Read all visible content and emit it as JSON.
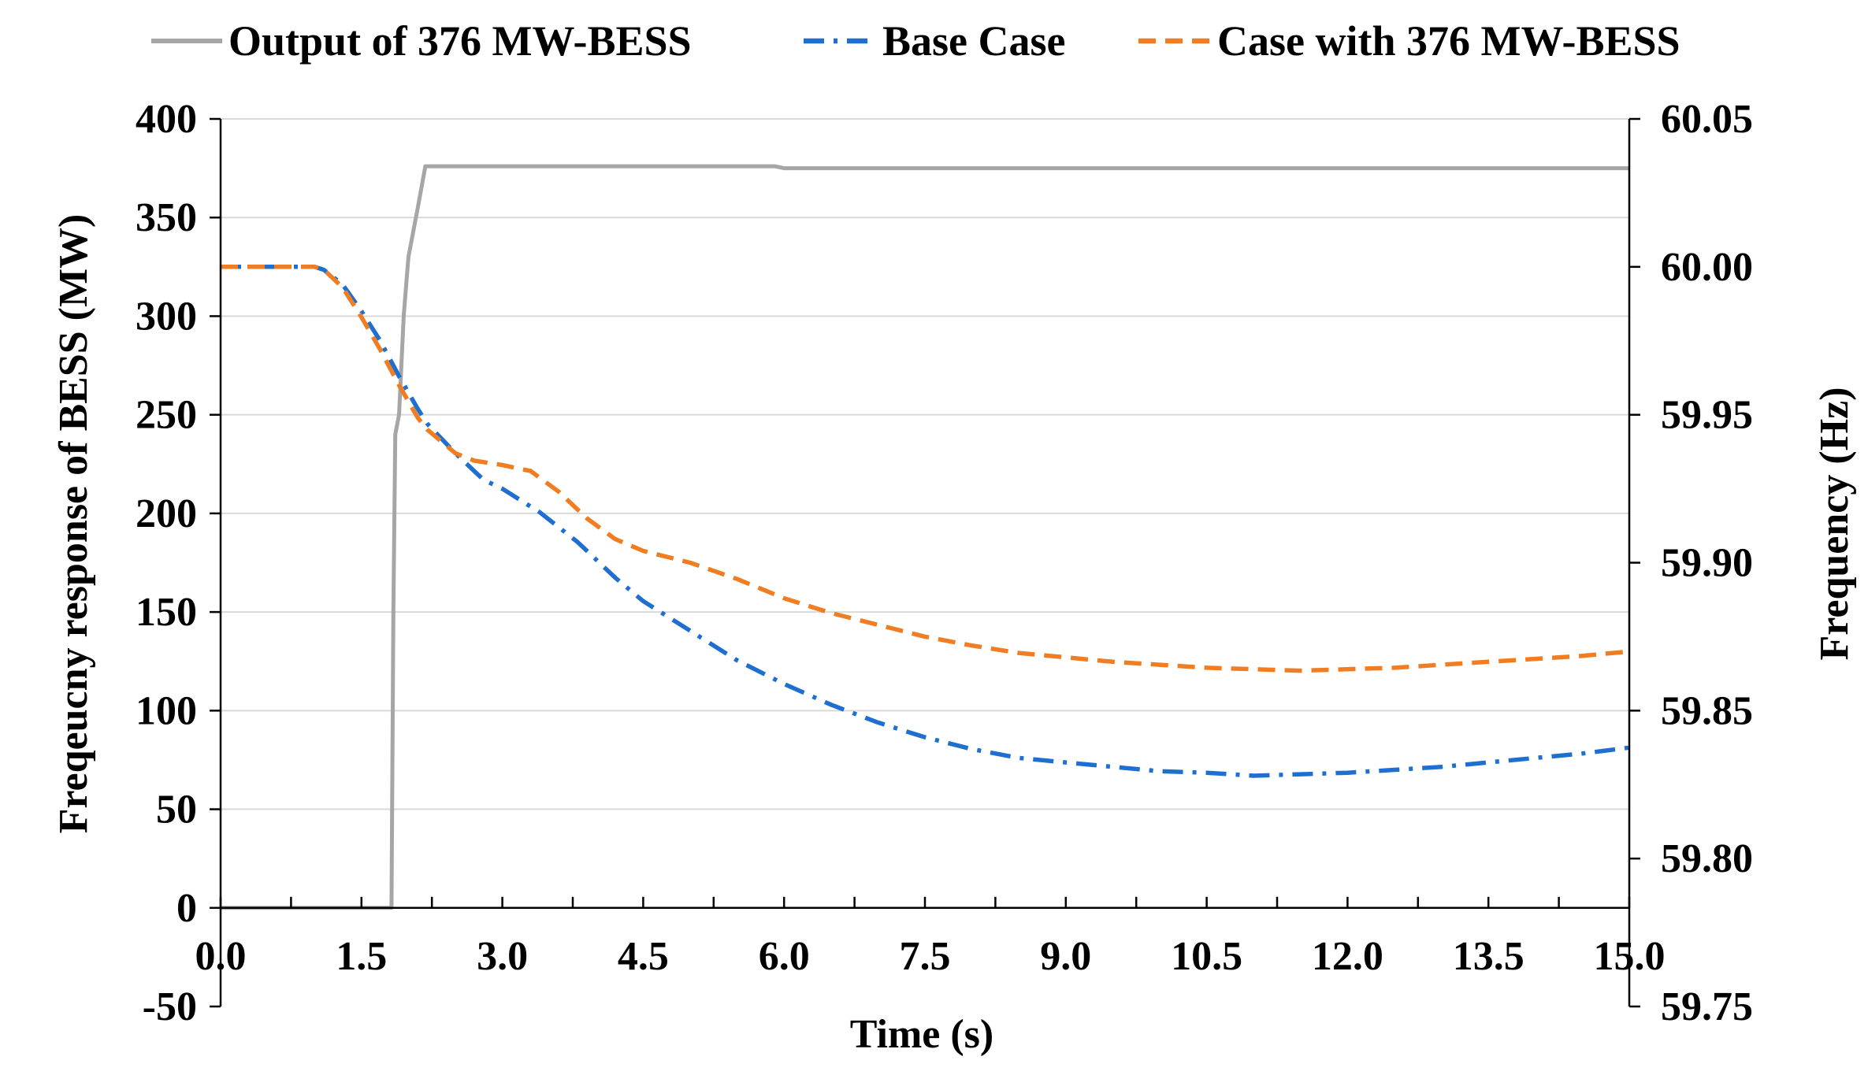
{
  "chart_data": {
    "type": "line",
    "xlabel": "Time (s)",
    "ylabel_left": "Freqeucny response of BESS (MW)",
    "ylabel_right": "Frequency (Hz)",
    "xlim": [
      0,
      15
    ],
    "ylim_left": [
      -50,
      400
    ],
    "ylim_right": [
      59.75,
      60.05
    ],
    "grid": true,
    "legend_position": "top",
    "x_ticks": [
      "0.0",
      "1.5",
      "3.0",
      "4.5",
      "6.0",
      "7.5",
      "9.0",
      "10.5",
      "12.0",
      "13.5",
      "15.0"
    ],
    "y_left_ticks": [
      "400",
      "350",
      "300",
      "250",
      "200",
      "150",
      "100",
      "50",
      "0",
      "-50"
    ],
    "y_right_ticks": [
      "60.05",
      "60.00",
      "59.95",
      "59.90",
      "59.85",
      "59.80",
      "59.75"
    ],
    "colors": {
      "bess": "#a6a6a6",
      "base": "#1f6fd1",
      "case": "#f07d22",
      "grid": "#d9d9d9"
    },
    "series": [
      {
        "name": "Output of 376 MW-BESS",
        "axis": "left",
        "style": "solid",
        "color_key": "bess",
        "points": [
          [
            0,
            0
          ],
          [
            1.75,
            0
          ],
          [
            1.82,
            0
          ],
          [
            1.84,
            150
          ],
          [
            1.86,
            240
          ],
          [
            1.9,
            250
          ],
          [
            1.95,
            300
          ],
          [
            2.0,
            330
          ],
          [
            2.1,
            355
          ],
          [
            2.18,
            376
          ],
          [
            4.0,
            376
          ],
          [
            5.9,
            376
          ],
          [
            6.0,
            375
          ],
          [
            15.0,
            375
          ]
        ]
      },
      {
        "name": "Base Case",
        "axis": "right",
        "style": "dashdot",
        "color_key": "base",
        "points": [
          [
            0,
            60.0
          ],
          [
            0.5,
            60.0
          ],
          [
            1.0,
            60.0
          ],
          [
            1.1,
            59.999
          ],
          [
            1.3,
            59.994
          ],
          [
            1.5,
            59.985
          ],
          [
            1.7,
            59.975
          ],
          [
            1.9,
            59.963
          ],
          [
            2.1,
            59.952
          ],
          [
            2.2,
            59.947
          ],
          [
            2.5,
            59.937
          ],
          [
            2.8,
            59.928
          ],
          [
            3.0,
            59.925
          ],
          [
            3.4,
            59.917
          ],
          [
            3.8,
            59.907
          ],
          [
            4.2,
            59.895
          ],
          [
            4.5,
            59.887
          ],
          [
            5.0,
            59.877
          ],
          [
            5.5,
            59.867
          ],
          [
            6.0,
            59.859
          ],
          [
            6.5,
            59.852
          ],
          [
            7.0,
            59.846
          ],
          [
            7.5,
            59.841
          ],
          [
            8.0,
            59.837
          ],
          [
            8.5,
            59.834
          ],
          [
            9.0,
            59.8325
          ],
          [
            9.5,
            59.831
          ],
          [
            10.0,
            59.8295
          ],
          [
            10.5,
            59.829
          ],
          [
            11.0,
            59.828
          ],
          [
            11.5,
            59.8285
          ],
          [
            12.0,
            59.829
          ],
          [
            12.5,
            59.83
          ],
          [
            13.0,
            59.831
          ],
          [
            13.5,
            59.8325
          ],
          [
            14.0,
            59.834
          ],
          [
            14.5,
            59.8355
          ],
          [
            15.0,
            59.8375
          ]
        ]
      },
      {
        "name": "Case with 376 MW-BESS",
        "axis": "right",
        "style": "dashed",
        "color_key": "case",
        "points": [
          [
            0,
            60.0
          ],
          [
            0.5,
            60.0
          ],
          [
            1.0,
            60.0
          ],
          [
            1.1,
            59.999
          ],
          [
            1.3,
            59.993
          ],
          [
            1.5,
            59.983
          ],
          [
            1.7,
            59.972
          ],
          [
            1.9,
            59.96
          ],
          [
            2.1,
            59.949
          ],
          [
            2.2,
            59.945
          ],
          [
            2.5,
            59.937
          ],
          [
            2.7,
            59.9345
          ],
          [
            3.0,
            59.933
          ],
          [
            3.3,
            59.931
          ],
          [
            3.6,
            59.924
          ],
          [
            3.9,
            59.915
          ],
          [
            4.2,
            59.908
          ],
          [
            4.5,
            59.904
          ],
          [
            5.0,
            59.9
          ],
          [
            5.5,
            59.8945
          ],
          [
            6.0,
            59.888
          ],
          [
            6.5,
            59.883
          ],
          [
            7.0,
            59.879
          ],
          [
            7.5,
            59.875
          ],
          [
            8.0,
            59.872
          ],
          [
            8.5,
            59.8695
          ],
          [
            9.0,
            59.868
          ],
          [
            9.5,
            59.8665
          ],
          [
            10.0,
            59.8655
          ],
          [
            10.5,
            59.8645
          ],
          [
            11.0,
            59.864
          ],
          [
            11.5,
            59.8635
          ],
          [
            12.0,
            59.864
          ],
          [
            12.5,
            59.8645
          ],
          [
            13.0,
            59.8655
          ],
          [
            13.5,
            59.8665
          ],
          [
            14.0,
            59.8675
          ],
          [
            14.5,
            59.8685
          ],
          [
            15.0,
            59.87
          ]
        ]
      }
    ]
  }
}
